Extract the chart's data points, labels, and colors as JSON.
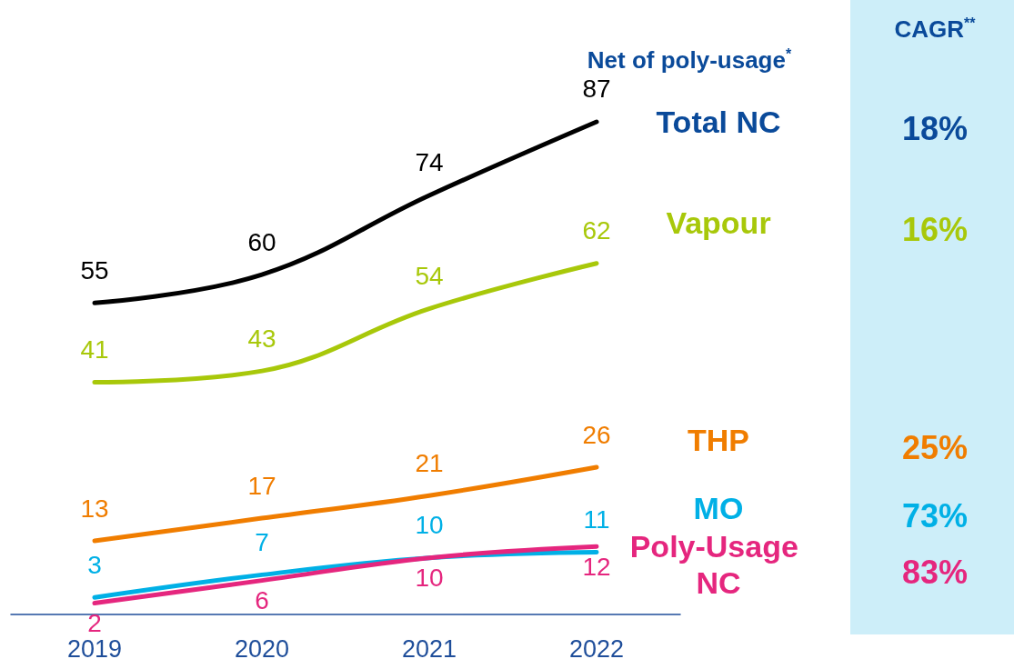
{
  "chart_data": {
    "type": "line",
    "categories": [
      "2019",
      "2020",
      "2021",
      "2022"
    ],
    "series": [
      {
        "name": "Total NC",
        "color": "#000000",
        "values": [
          55,
          60,
          74,
          87
        ]
      },
      {
        "name": "Vapour",
        "color": "#a8c80a",
        "values": [
          41,
          43,
          54,
          62
        ]
      },
      {
        "name": "THP",
        "color": "#f07d00",
        "values": [
          13,
          17,
          21,
          26
        ]
      },
      {
        "name": "MO",
        "color": "#00b0e6",
        "values": [
          3,
          7,
          10,
          11
        ]
      },
      {
        "name": "Poly-Usage NC",
        "color": "#e5267e",
        "values": [
          2,
          6,
          10,
          12
        ]
      }
    ],
    "data_labels": true,
    "grid": false,
    "legend": false,
    "marker": "none",
    "line_style": "solid",
    "annotations": [
      "Net of poly-usage$^{*}$",
      "CAGR$^{**}$",
      "18%",
      "16%",
      "25%",
      "73%",
      "83%"
    ]
  }
}
